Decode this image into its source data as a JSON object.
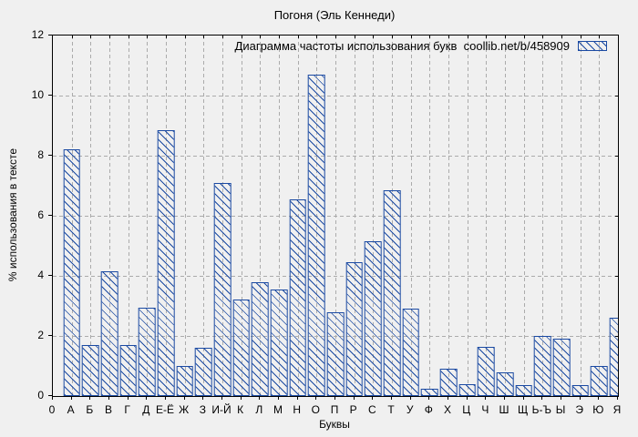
{
  "figure": {
    "background_color": "#f0f0f0",
    "bar_color": "#1b4aa2",
    "grid_color": "#ababab"
  },
  "title": "Погоня (Эль Кеннеди)",
  "legend": {
    "label": "Диаграмма частоты использования букв  coollib.net/b/458909"
  },
  "chart_data": {
    "type": "bar",
    "title": "Погоня (Эль Кеннеди)",
    "legend_label": "Диаграмма частоты использования букв  coollib.net/b/458909",
    "xlabel": "Буквы",
    "ylabel": "% использования в тексте",
    "ylim": [
      0,
      12
    ],
    "yticks": [
      0,
      2,
      4,
      6,
      8,
      10,
      12
    ],
    "x_origin_label": "0",
    "grid": true,
    "legend_position": "top-right",
    "hatch": "diagonal",
    "categories": [
      "А",
      "Б",
      "В",
      "Г",
      "Д",
      "Е-Ё",
      "Ж",
      "З",
      "И-Й",
      "К",
      "Л",
      "М",
      "Н",
      "О",
      "П",
      "Р",
      "С",
      "Т",
      "У",
      "Ф",
      "Х",
      "Ц",
      "Ч",
      "Ш",
      "Щ",
      "Ь-Ъ",
      "Ы",
      "Э",
      "Ю",
      "Я"
    ],
    "values": [
      8.2,
      1.7,
      4.15,
      1.7,
      2.95,
      8.85,
      1.0,
      1.6,
      7.1,
      3.2,
      3.8,
      3.55,
      6.55,
      10.7,
      2.8,
      4.45,
      5.15,
      6.85,
      2.9,
      0.25,
      0.9,
      0.4,
      1.65,
      0.8,
      0.35,
      2.0,
      1.9,
      0.35,
      1.0,
      2.6
    ]
  }
}
